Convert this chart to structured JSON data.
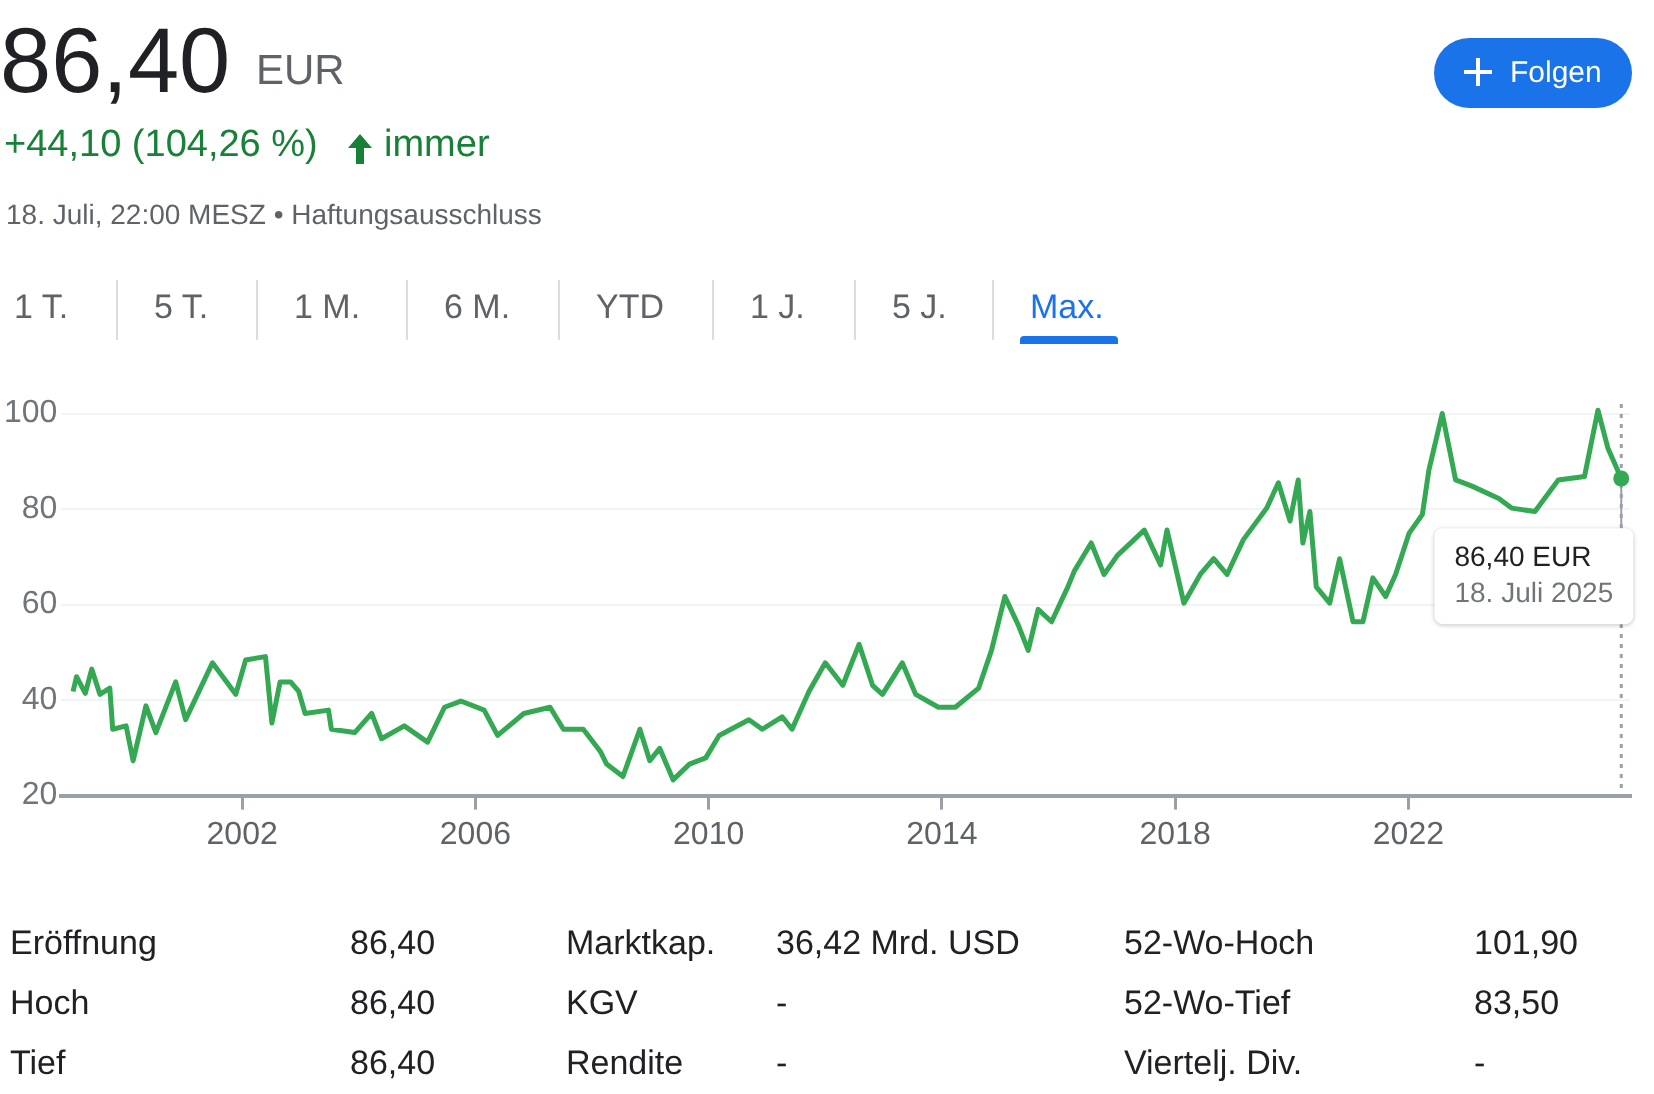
{
  "chart_data": {
    "type": "line",
    "title": "86,40",
    "annotations": [
      "EUR",
      "+44,10 (104,26 %)",
      "immer",
      "18. Juli, 22:00 MESZ • Haftungsausschluss",
      "Folgen",
      "1 T.",
      "5 T.",
      "1 M.",
      "6 M.",
      "YTD",
      "1 J.",
      "5 J.",
      "Max.",
      "Eröffnung",
      "86,40",
      "Marktkap.",
      "36,42 Mrd. USD",
      "52-Wo-Hoch",
      "101,90",
      "Hoch",
      "86,40",
      "KGV",
      "-",
      "52-Wo-Tief",
      "83,50",
      "Tief",
      "86,40",
      "Rendite",
      "-",
      "Viertelj. Div.",
      "-",
      {
        "text": "86,40 EUR  18. Juli 2025",
        "x": 2025.65,
        "y": 86.4
      }
    ],
    "x": [
      1999.1,
      1999.16,
      1999.31,
      1999.42,
      1999.56,
      1999.73,
      1999.78,
      2000.01,
      2000.13,
      2000.35,
      2000.52,
      2000.86,
      2001.03,
      2001.49,
      2001.89,
      2002.06,
      2002.4,
      2002.51,
      2002.65,
      2002.83,
      2002.97,
      2003.08,
      2003.48,
      2003.53,
      2003.93,
      2004.22,
      2004.39,
      2004.78,
      2005.18,
      2005.47,
      2005.75,
      2006.15,
      2006.38,
      2006.83,
      2007.28,
      2007.51,
      2007.85,
      2008.14,
      2008.25,
      2008.53,
      2008.82,
      2008.99,
      2009.16,
      2009.39,
      2009.67,
      2009.95,
      2010.18,
      2010.69,
      2010.92,
      2011.26,
      2011.43,
      2011.72,
      2012.0,
      2012.3,
      2012.58,
      2012.81,
      2012.98,
      2013.32,
      2013.55,
      2013.94,
      2014.23,
      2014.63,
      2014.85,
      2015.08,
      2015.31,
      2015.48,
      2015.65,
      2015.88,
      2016.16,
      2016.27,
      2016.56,
      2016.78,
      2017.01,
      2017.47,
      2017.75,
      2017.86,
      2018.15,
      2018.43,
      2018.66,
      2018.89,
      2019.17,
      2019.57,
      2019.77,
      2019.97,
      2020.11,
      2020.19,
      2020.31,
      2020.42,
      2020.65,
      2020.82,
      2021.05,
      2021.22,
      2021.39,
      2021.61,
      2021.78,
      2022.01,
      2022.24,
      2022.35,
      2022.58,
      2022.81,
      2023.09,
      2023.55,
      2023.77,
      2024.17,
      2024.57,
      2025.02,
      2025.25,
      2025.42,
      2025.65
    ],
    "series": [
      {
        "color": "#34a853",
        "values": [
          41.8,
          44.9,
          41.4,
          46.5,
          41.2,
          42.5,
          33.9,
          34.6,
          27.3,
          38.8,
          33.2,
          43.8,
          35.9,
          47.8,
          41.2,
          48.4,
          49.1,
          35.2,
          43.8,
          43.8,
          41.8,
          37.2,
          37.9,
          33.9,
          33.2,
          37.2,
          31.9,
          34.6,
          31.2,
          38.5,
          39.8,
          37.9,
          32.6,
          37.2,
          38.5,
          33.9,
          33.9,
          29.3,
          26.6,
          24.0,
          33.9,
          27.3,
          29.9,
          23.3,
          26.6,
          27.9,
          32.6,
          35.9,
          33.9,
          36.5,
          33.9,
          41.8,
          47.8,
          43.1,
          51.7,
          43.1,
          41.2,
          47.8,
          41.2,
          38.5,
          38.5,
          42.5,
          50.4,
          61.7,
          55.7,
          50.4,
          59.0,
          56.4,
          63.7,
          67.0,
          72.9,
          66.3,
          70.3,
          75.6,
          68.3,
          75.6,
          60.3,
          66.3,
          69.6,
          66.3,
          73.6,
          80.2,
          85.5,
          77.5,
          86.1,
          72.9,
          79.5,
          63.7,
          60.3,
          69.6,
          56.4,
          56.4,
          65.6,
          61.7,
          66.3,
          74.9,
          78.9,
          88.1,
          100.0,
          86.1,
          84.8,
          82.2,
          80.2,
          79.5,
          86.1,
          86.8,
          100.7,
          92.8,
          86.4
        ]
      }
    ],
    "xlim": [
      1998.9,
      2025.8
    ],
    "xticks": [
      2002,
      2006,
      2010,
      2014,
      2018,
      2022
    ],
    "ylim": [
      20,
      102
    ],
    "yticks": [
      20,
      40,
      60,
      80,
      100
    ],
    "grid": "y",
    "legend": false,
    "marker": "none",
    "line_style": "solid",
    "ref_lines": [
      {
        "axis": "x",
        "value": 2025.65,
        "line_style": "dotted",
        "color": "#9aa0a6"
      }
    ]
  }
}
